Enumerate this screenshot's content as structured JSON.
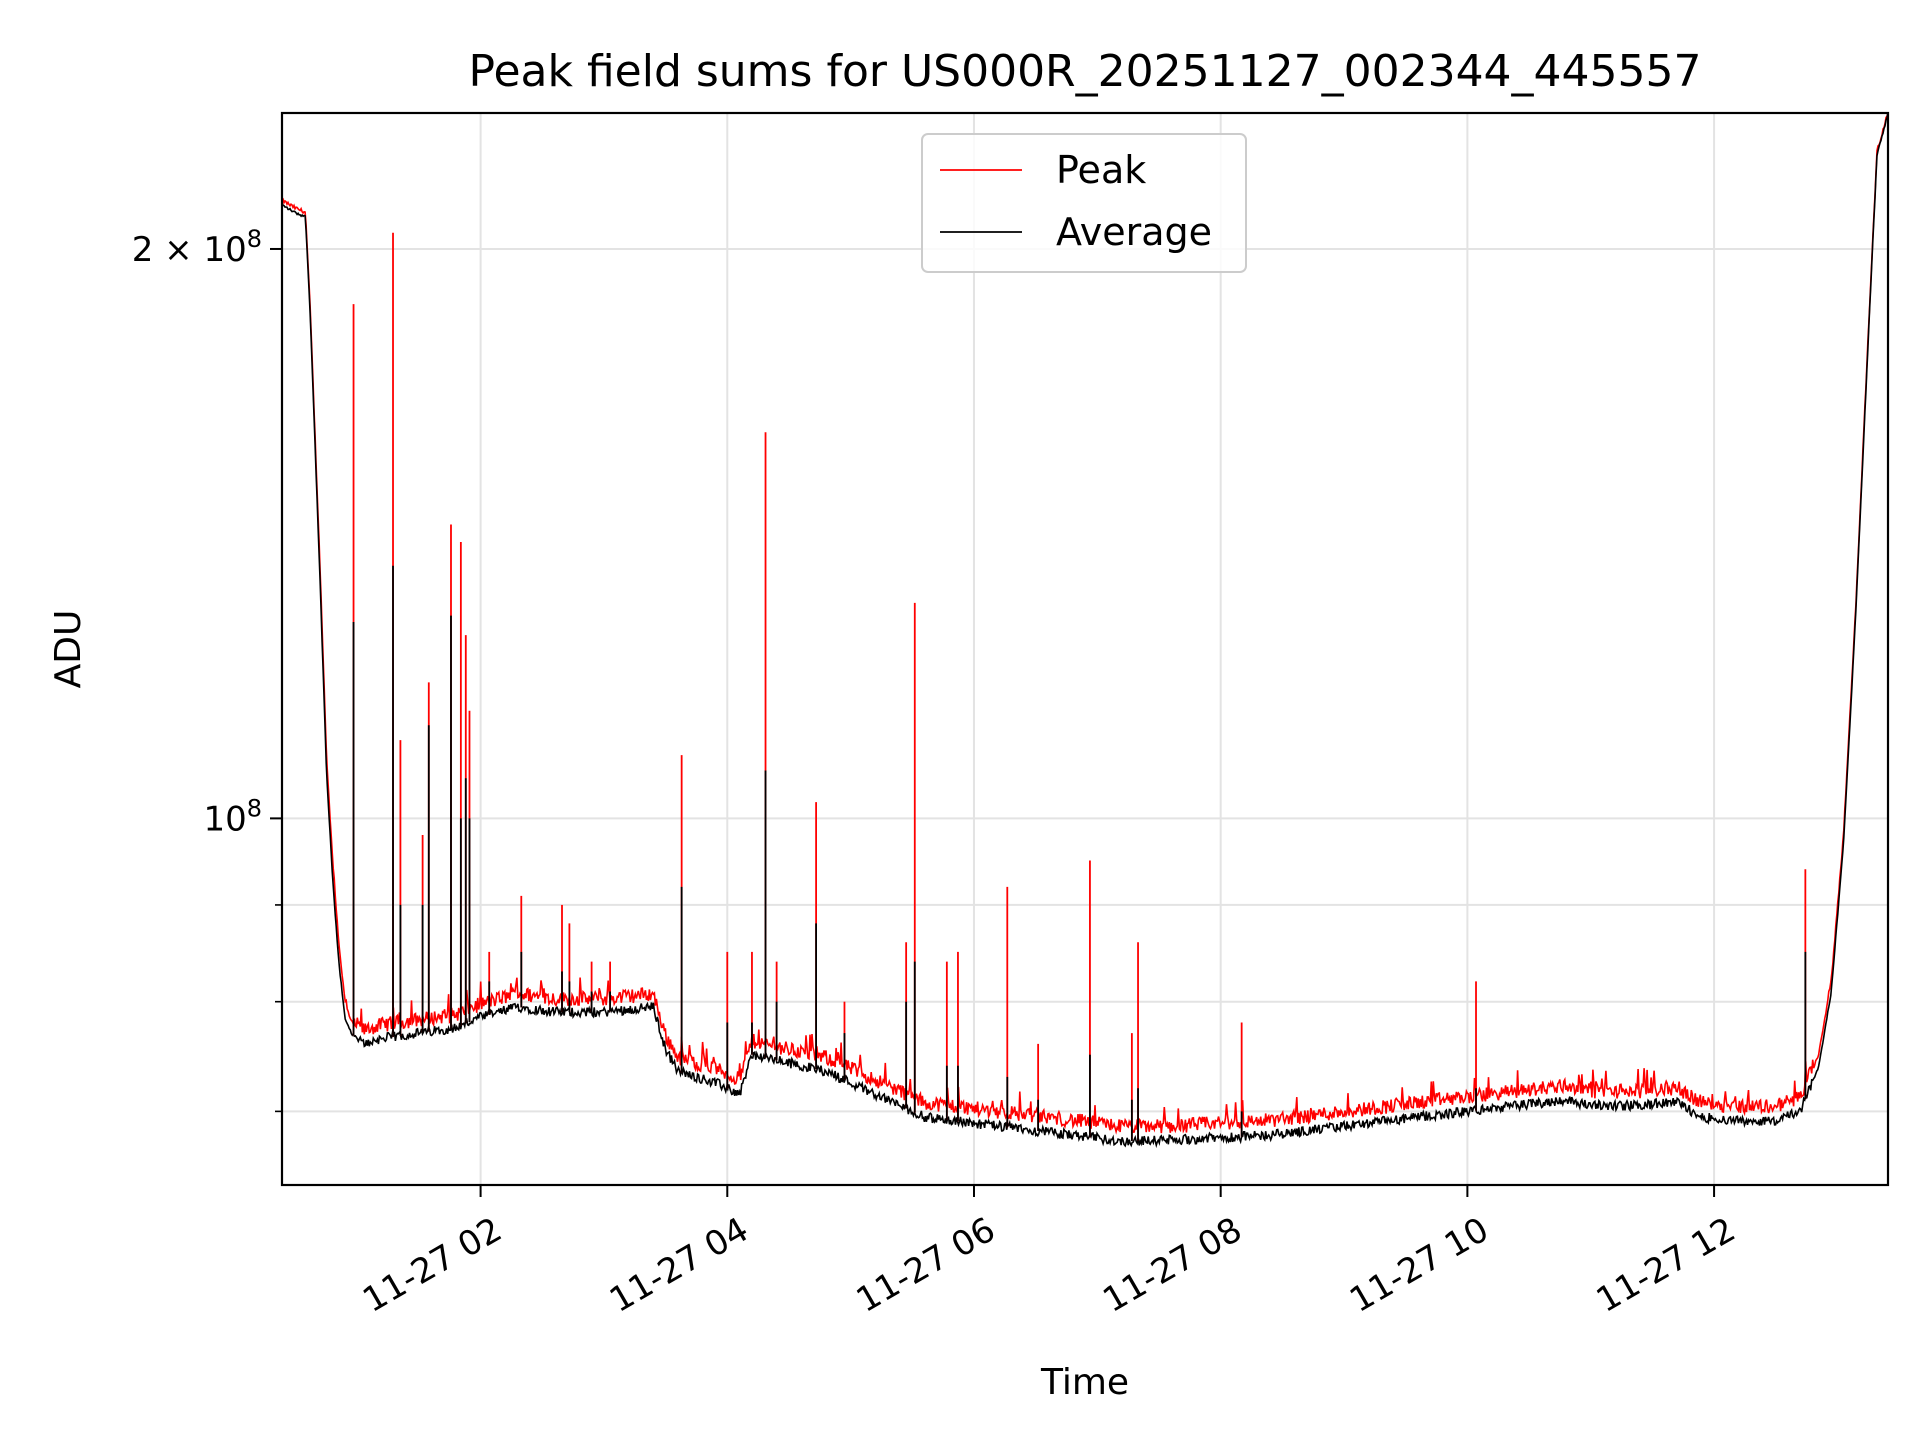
{
  "chart_data": {
    "type": "line",
    "title": "Peak field sums for US000R_20251127_002344_445557",
    "xlabel": "Time",
    "ylabel": "ADU",
    "yscale": "log",
    "xlim_hours": [
      0.39,
      13.41
    ],
    "ylim": [
      64000000,
      236000000
    ],
    "grid": true,
    "legend_position": "upper-center",
    "x_ticks": [
      {
        "value": 2,
        "label": "11-27 02"
      },
      {
        "value": 4,
        "label": "11-27 04"
      },
      {
        "value": 6,
        "label": "11-27 06"
      },
      {
        "value": 8,
        "label": "11-27 08"
      },
      {
        "value": 10,
        "label": "11-27 10"
      },
      {
        "value": 12,
        "label": "11-27 12"
      }
    ],
    "y_major_ticks": [
      {
        "value": 100000000,
        "label_base": "10",
        "label_exp": "8",
        "label_prefix": ""
      },
      {
        "value": 200000000,
        "label_base": "10",
        "label_exp": "8",
        "label_prefix": "2 × "
      }
    ],
    "y_minor_ticks": [
      70000000,
      80000000,
      90000000,
      300000000
    ],
    "series": [
      {
        "name": "Peak",
        "color": "#ff0000",
        "x": [
          0.39,
          0.5,
          0.58,
          0.62,
          0.7,
          0.75,
          0.8,
          0.85,
          0.9,
          0.95,
          1.0,
          1.05,
          1.2,
          1.5,
          1.8,
          2.0,
          2.3,
          2.6,
          3.0,
          3.4,
          3.5,
          3.6,
          3.9,
          4.1,
          4.2,
          4.4,
          4.8,
          5.0,
          5.4,
          5.6,
          6.0,
          6.4,
          6.8,
          7.2,
          7.6,
          8.0,
          8.4,
          8.8,
          9.2,
          9.6,
          10.0,
          10.4,
          10.8,
          11.0,
          11.4,
          11.7,
          11.9,
          12.2,
          12.5,
          12.7,
          12.85,
          12.95,
          13.05,
          13.15,
          13.25,
          13.32,
          13.41
        ],
        "y": [
          212000000,
          210000000,
          209000000,
          185000000,
          135000000,
          108000000,
          95000000,
          86000000,
          80000000,
          78000000,
          77500000,
          77000000,
          77500000,
          78000000,
          78500000,
          79500000,
          80500000,
          80000000,
          80000000,
          80500000,
          76500000,
          74500000,
          73500000,
          72500000,
          76000000,
          75500000,
          74500000,
          73500000,
          71500000,
          70500000,
          70000000,
          69500000,
          69000000,
          68500000,
          68500000,
          68800000,
          69000000,
          69500000,
          70000000,
          70500000,
          71000000,
          71500000,
          72000000,
          71500000,
          71500000,
          71800000,
          70500000,
          70200000,
          70200000,
          71000000,
          75000000,
          82000000,
          98000000,
          130000000,
          180000000,
          225000000,
          236000000
        ]
      },
      {
        "name": "Average",
        "color": "#000000",
        "x": [
          0.39,
          0.5,
          0.58,
          0.62,
          0.7,
          0.75,
          0.8,
          0.85,
          0.9,
          0.95,
          1.0,
          1.05,
          1.2,
          1.5,
          1.8,
          2.0,
          2.3,
          2.6,
          3.0,
          3.4,
          3.5,
          3.6,
          3.9,
          4.1,
          4.2,
          4.4,
          4.8,
          5.0,
          5.4,
          5.6,
          6.0,
          6.4,
          6.8,
          7.2,
          7.6,
          8.0,
          8.4,
          8.8,
          9.2,
          9.6,
          10.0,
          10.4,
          10.8,
          11.0,
          11.4,
          11.7,
          11.9,
          12.2,
          12.5,
          12.7,
          12.85,
          12.95,
          13.05,
          13.15,
          13.25,
          13.32,
          13.41
        ],
        "y": [
          211000000,
          209000000,
          208000000,
          184000000,
          133000000,
          106000000,
          93000000,
          84000000,
          78500000,
          77000000,
          76500000,
          76000000,
          76500000,
          77000000,
          77500000,
          78500000,
          79500000,
          79000000,
          79000000,
          79500000,
          75500000,
          73500000,
          72500000,
          71500000,
          75000000,
          74500000,
          73500000,
          72500000,
          70500000,
          69500000,
          69000000,
          68500000,
          68000000,
          67500000,
          67600000,
          67800000,
          68000000,
          68500000,
          69000000,
          69500000,
          70000000,
          70500000,
          71000000,
          70500000,
          70500000,
          70800000,
          69500000,
          69200000,
          69200000,
          70000000,
          74000000,
          81000000,
          97000000,
          129000000,
          179000000,
          224000000,
          236000000
        ]
      }
    ],
    "peak_spikes": [
      {
        "x": 0.97,
        "peak": 187000000,
        "avg": 127000000
      },
      {
        "x": 1.29,
        "peak": 204000000,
        "avg": 136000000
      },
      {
        "x": 1.35,
        "peak": 110000000,
        "avg": 90000000
      },
      {
        "x": 1.53,
        "peak": 98000000,
        "avg": 90000000
      },
      {
        "x": 1.58,
        "peak": 118000000,
        "avg": 112000000
      },
      {
        "x": 1.76,
        "peak": 143000000,
        "avg": 128000000
      },
      {
        "x": 1.84,
        "peak": 140000000,
        "avg": 100000000
      },
      {
        "x": 1.88,
        "peak": 125000000,
        "avg": 105000000
      },
      {
        "x": 1.91,
        "peak": 114000000,
        "avg": 100000000
      },
      {
        "x": 2.07,
        "peak": 85000000,
        "avg": 82000000
      },
      {
        "x": 2.33,
        "peak": 91000000,
        "avg": 85000000
      },
      {
        "x": 2.66,
        "peak": 90000000,
        "avg": 83000000
      },
      {
        "x": 2.72,
        "peak": 88000000,
        "avg": 82000000
      },
      {
        "x": 2.9,
        "peak": 84000000,
        "avg": 81000000
      },
      {
        "x": 3.05,
        "peak": 84000000,
        "avg": 81000000
      },
      {
        "x": 3.63,
        "peak": 108000000,
        "avg": 92000000
      },
      {
        "x": 4.0,
        "peak": 85000000,
        "avg": 78000000
      },
      {
        "x": 4.2,
        "peak": 85000000,
        "avg": 78000000
      },
      {
        "x": 4.31,
        "peak": 160000000,
        "avg": 106000000
      },
      {
        "x": 4.4,
        "peak": 84000000,
        "avg": 80000000
      },
      {
        "x": 4.72,
        "peak": 102000000,
        "avg": 88000000
      },
      {
        "x": 4.95,
        "peak": 80000000,
        "avg": 77000000
      },
      {
        "x": 5.45,
        "peak": 86000000,
        "avg": 80000000
      },
      {
        "x": 5.52,
        "peak": 130000000,
        "avg": 84000000
      },
      {
        "x": 5.78,
        "peak": 84000000,
        "avg": 74000000
      },
      {
        "x": 5.87,
        "peak": 85000000,
        "avg": 74000000
      },
      {
        "x": 6.27,
        "peak": 92000000,
        "avg": 73000000
      },
      {
        "x": 6.52,
        "peak": 76000000,
        "avg": 71000000
      },
      {
        "x": 6.94,
        "peak": 95000000,
        "avg": 75000000
      },
      {
        "x": 7.28,
        "peak": 77000000,
        "avg": 71000000
      },
      {
        "x": 7.33,
        "peak": 86000000,
        "avg": 72000000
      },
      {
        "x": 8.17,
        "peak": 78000000,
        "avg": 70000000
      },
      {
        "x": 10.07,
        "peak": 82000000,
        "avg": 72000000
      },
      {
        "x": 12.74,
        "peak": 94000000,
        "avg": 85000000
      }
    ]
  }
}
